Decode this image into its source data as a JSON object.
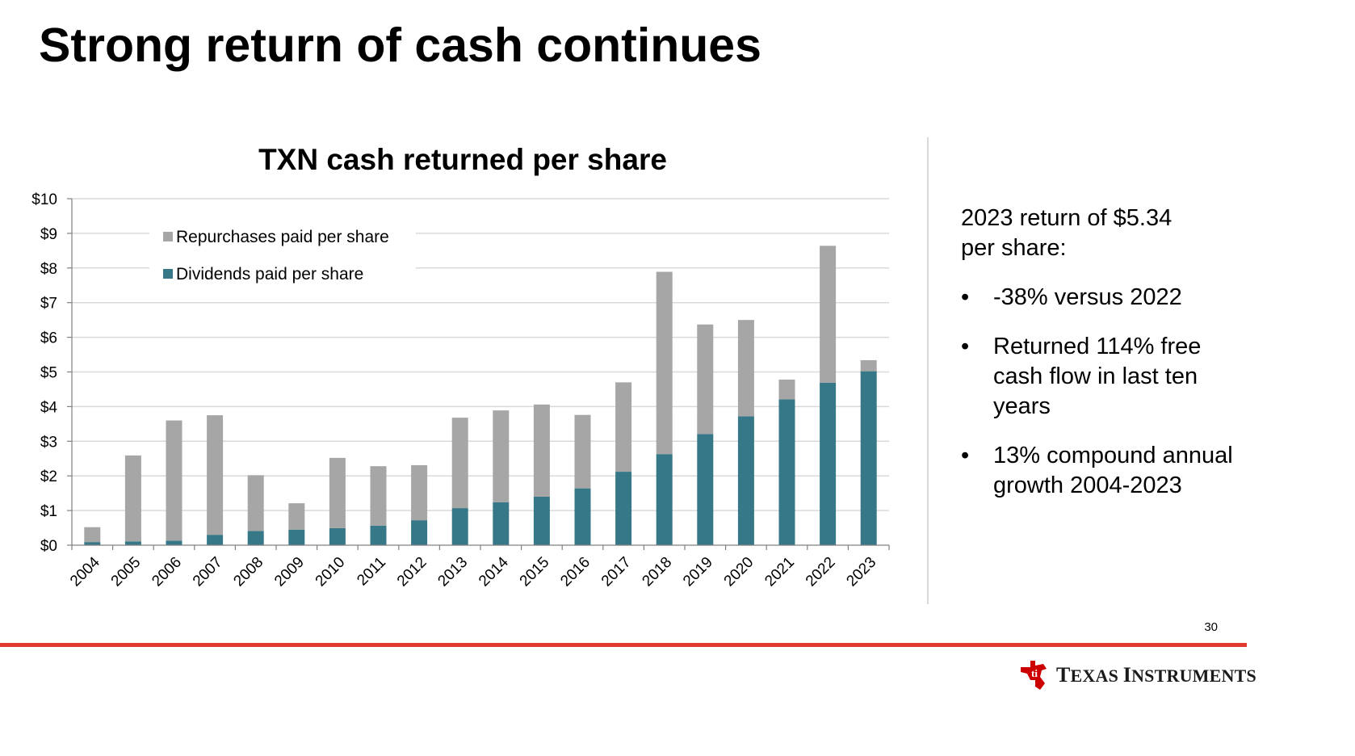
{
  "slide": {
    "title": "Strong return of cash continues",
    "page_number": "30"
  },
  "side_panel": {
    "heading": "2023 return of $5.34 per share:",
    "bullets": [
      "-38% versus 2022",
      "Returned 114% free cash flow in last ten years",
      "13% compound annual growth 2004-2023"
    ]
  },
  "logo": {
    "first_initial": "T",
    "first_rest": "EXAS",
    "second_initial": "I",
    "second_rest": "NSTRUMENTS"
  },
  "colors": {
    "dividends": "#367887",
    "repurchases": "#a6a6a6",
    "gridline": "#d9d9d9",
    "footer_rule": "#e03a2e",
    "logo_red": "#cc0000"
  },
  "chart_data": {
    "type": "bar",
    "stacked": true,
    "title": "TXN cash returned per share",
    "xlabel": "",
    "ylabel": "",
    "ylim": [
      0,
      10
    ],
    "y_ticks": [
      "$0",
      "$1",
      "$2",
      "$3",
      "$4",
      "$5",
      "$6",
      "$7",
      "$8",
      "$9",
      "$10"
    ],
    "grid": true,
    "legend_position": "top-left",
    "legend_order": [
      "Repurchases paid per share",
      "Dividends paid per share"
    ],
    "categories": [
      "2004",
      "2005",
      "2006",
      "2007",
      "2008",
      "2009",
      "2010",
      "2011",
      "2012",
      "2013",
      "2014",
      "2015",
      "2016",
      "2017",
      "2018",
      "2019",
      "2020",
      "2021",
      "2022",
      "2023"
    ],
    "series": [
      {
        "name": "Dividends paid per share",
        "color": "#367887",
        "values": [
          0.09,
          0.11,
          0.13,
          0.3,
          0.41,
          0.45,
          0.49,
          0.56,
          0.72,
          1.07,
          1.24,
          1.4,
          1.64,
          2.12,
          2.63,
          3.21,
          3.72,
          4.21,
          4.69,
          5.02
        ]
      },
      {
        "name": "Repurchases paid per share",
        "color": "#a6a6a6",
        "values": [
          0.43,
          2.48,
          3.47,
          3.45,
          1.61,
          0.76,
          2.03,
          1.72,
          1.59,
          2.61,
          2.65,
          2.66,
          2.12,
          2.58,
          5.26,
          3.16,
          2.78,
          0.57,
          3.95,
          0.32
        ]
      }
    ]
  }
}
